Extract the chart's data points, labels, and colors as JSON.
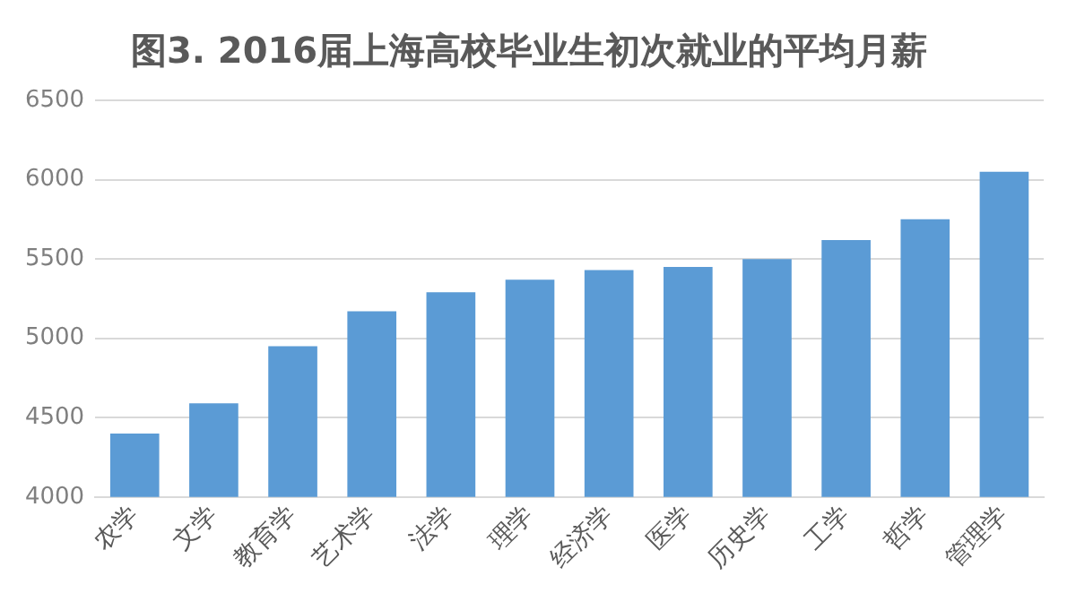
{
  "chart_data": {
    "type": "bar",
    "title": "图3. 2016届上海高校毕业生初次就业的平均月薪",
    "categories": [
      "农学",
      "文学",
      "教育学",
      "艺术学",
      "法学",
      "理学",
      "经济学",
      "医学",
      "历史学",
      "工学",
      "哲学",
      "管理学"
    ],
    "values": [
      4400,
      4590,
      4950,
      5170,
      5290,
      5370,
      5430,
      5450,
      5500,
      5620,
      5750,
      6050
    ],
    "color": "#5b9bd5",
    "ylim": [
      4000,
      6500
    ],
    "yticks": [
      4000,
      4500,
      5000,
      5500,
      6000,
      6500
    ],
    "grid": "y",
    "legend": false
  }
}
